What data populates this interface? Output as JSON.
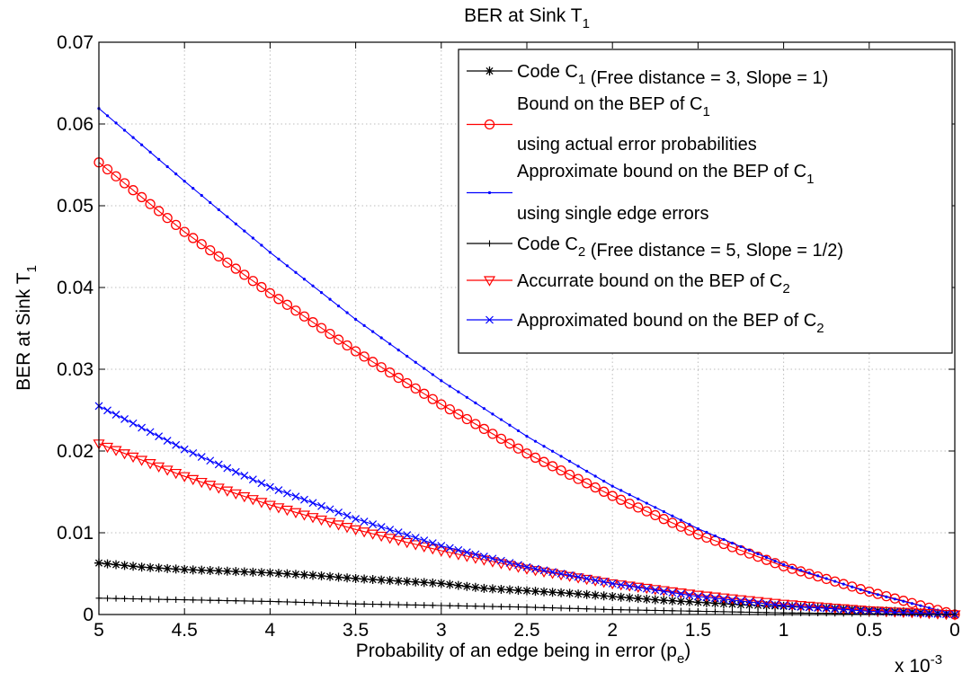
{
  "chart_data": {
    "type": "line",
    "title": "BER at Sink T",
    "title_sub": "1",
    "xlabel": "Probability of an edge being in error (p",
    "xlabel_sub": "e",
    "xlabel_end": ")",
    "ylabel": "BER at Sink T",
    "ylabel_sub": "1",
    "x_multiplier": {
      "base": "x 10",
      "exp": "-3"
    },
    "xlim": [
      5,
      0
    ],
    "ylim": [
      0,
      0.07
    ],
    "x_reversed": true,
    "grid": true,
    "legend_position": "top-right",
    "x_ticks": [
      {
        "value": 5,
        "label": "5"
      },
      {
        "value": 4.5,
        "label": "4.5"
      },
      {
        "value": 4,
        "label": "4"
      },
      {
        "value": 3.5,
        "label": "3.5"
      },
      {
        "value": 3,
        "label": "3"
      },
      {
        "value": 2.5,
        "label": "2.5"
      },
      {
        "value": 2,
        "label": "2"
      },
      {
        "value": 1.5,
        "label": "1.5"
      },
      {
        "value": 1,
        "label": "1"
      },
      {
        "value": 0.5,
        "label": "0.5"
      },
      {
        "value": 0,
        "label": "0"
      }
    ],
    "y_ticks": [
      {
        "value": 0,
        "label": "0"
      },
      {
        "value": 0.01,
        "label": "0.01"
      },
      {
        "value": 0.02,
        "label": "0.02"
      },
      {
        "value": 0.03,
        "label": "0.03"
      },
      {
        "value": 0.04,
        "label": "0.04"
      },
      {
        "value": 0.05,
        "label": "0.05"
      },
      {
        "value": 0.06,
        "label": "0.06"
      },
      {
        "value": 0.07,
        "label": "0.07"
      }
    ],
    "series": [
      {
        "legend_lines": [
          [
            {
              "t": "Code C"
            },
            {
              "t": "1",
              "sub": true
            },
            {
              "t": " (Free distance = 3, Slope = 1)"
            }
          ]
        ],
        "color": "#000000",
        "marker": "star",
        "x": [
          5,
          4.75,
          4.5,
          4.25,
          4,
          3.75,
          3.5,
          3.25,
          3,
          2.75,
          2.5,
          2.25,
          2,
          1.75,
          1.5,
          1.25,
          1,
          0.75,
          0.5,
          0.25,
          0
        ],
        "y": [
          0.0063,
          0.0058,
          0.0055,
          0.0053,
          0.0051,
          0.0048,
          0.0044,
          0.0041,
          0.0038,
          0.0032,
          0.0029,
          0.0026,
          0.0022,
          0.0018,
          0.0015,
          0.0012,
          0.001,
          0.0008,
          0.0005,
          0.0003,
          0.0
        ]
      },
      {
        "legend_lines": [
          [
            {
              "t": "Bound on the BEP of C"
            },
            {
              "t": "1",
              "sub": true
            }
          ],
          [
            {
              "t": "using actual error probabilities"
            }
          ]
        ],
        "color": "#ff0000",
        "marker": "circle",
        "x": [
          5,
          4.5,
          4,
          3.5,
          3,
          2.5,
          2,
          1.5,
          1,
          0.5,
          0
        ],
        "y": [
          0.0553,
          0.0468,
          0.0393,
          0.0322,
          0.0257,
          0.0197,
          0.0145,
          0.0098,
          0.0059,
          0.0028,
          0.0
        ]
      },
      {
        "legend_lines": [
          [
            {
              "t": "Approximate bound on the BEP of C"
            },
            {
              "t": "1",
              "sub": true
            }
          ],
          [
            {
              "t": "using single edge errors"
            }
          ]
        ],
        "color": "#0000ff",
        "marker": "dot",
        "x": [
          5,
          4.5,
          4,
          3.5,
          3,
          2.5,
          2,
          1.5,
          1,
          0.5,
          0
        ],
        "y": [
          0.0619,
          0.053,
          0.0443,
          0.0361,
          0.0286,
          0.0218,
          0.0157,
          0.0105,
          0.0061,
          0.0027,
          0.0
        ]
      },
      {
        "legend_lines": [
          [
            {
              "t": "Code C"
            },
            {
              "t": "2",
              "sub": true
            },
            {
              "t": " (Free distance = 5, Slope = 1/2)"
            }
          ]
        ],
        "color": "#000000",
        "marker": "plus",
        "x": [
          5,
          4.5,
          4,
          3.5,
          3,
          2.5,
          2,
          1.5,
          1,
          0.5,
          0
        ],
        "y": [
          0.002,
          0.0018,
          0.0016,
          0.0013,
          0.0011,
          0.0009,
          0.0006,
          0.0004,
          0.0002,
          0.0001,
          0.0
        ]
      },
      {
        "legend_lines": [
          [
            {
              "t": "Accurrate bound on the BEP of C"
            },
            {
              "t": "2",
              "sub": true
            }
          ]
        ],
        "color": "#ff0000",
        "marker": "triangle-down",
        "x": [
          5,
          4.5,
          4,
          3.5,
          3,
          2.5,
          2,
          1.5,
          1,
          0.5,
          0
        ],
        "y": [
          0.0209,
          0.0169,
          0.0134,
          0.0104,
          0.0078,
          0.0056,
          0.0038,
          0.0024,
          0.0013,
          0.0005,
          0.0
        ]
      },
      {
        "legend_lines": [
          [
            {
              "t": "Approximated bound on the BEP of C"
            },
            {
              "t": "2",
              "sub": true
            }
          ]
        ],
        "color": "#0000ff",
        "marker": "x",
        "x": [
          5,
          4.5,
          4,
          3.5,
          3,
          2.5,
          2,
          1.5,
          1,
          0.5,
          0
        ],
        "y": [
          0.0255,
          0.0202,
          0.0156,
          0.0117,
          0.0084,
          0.0058,
          0.0038,
          0.0022,
          0.0011,
          0.0004,
          0.0
        ]
      }
    ]
  }
}
